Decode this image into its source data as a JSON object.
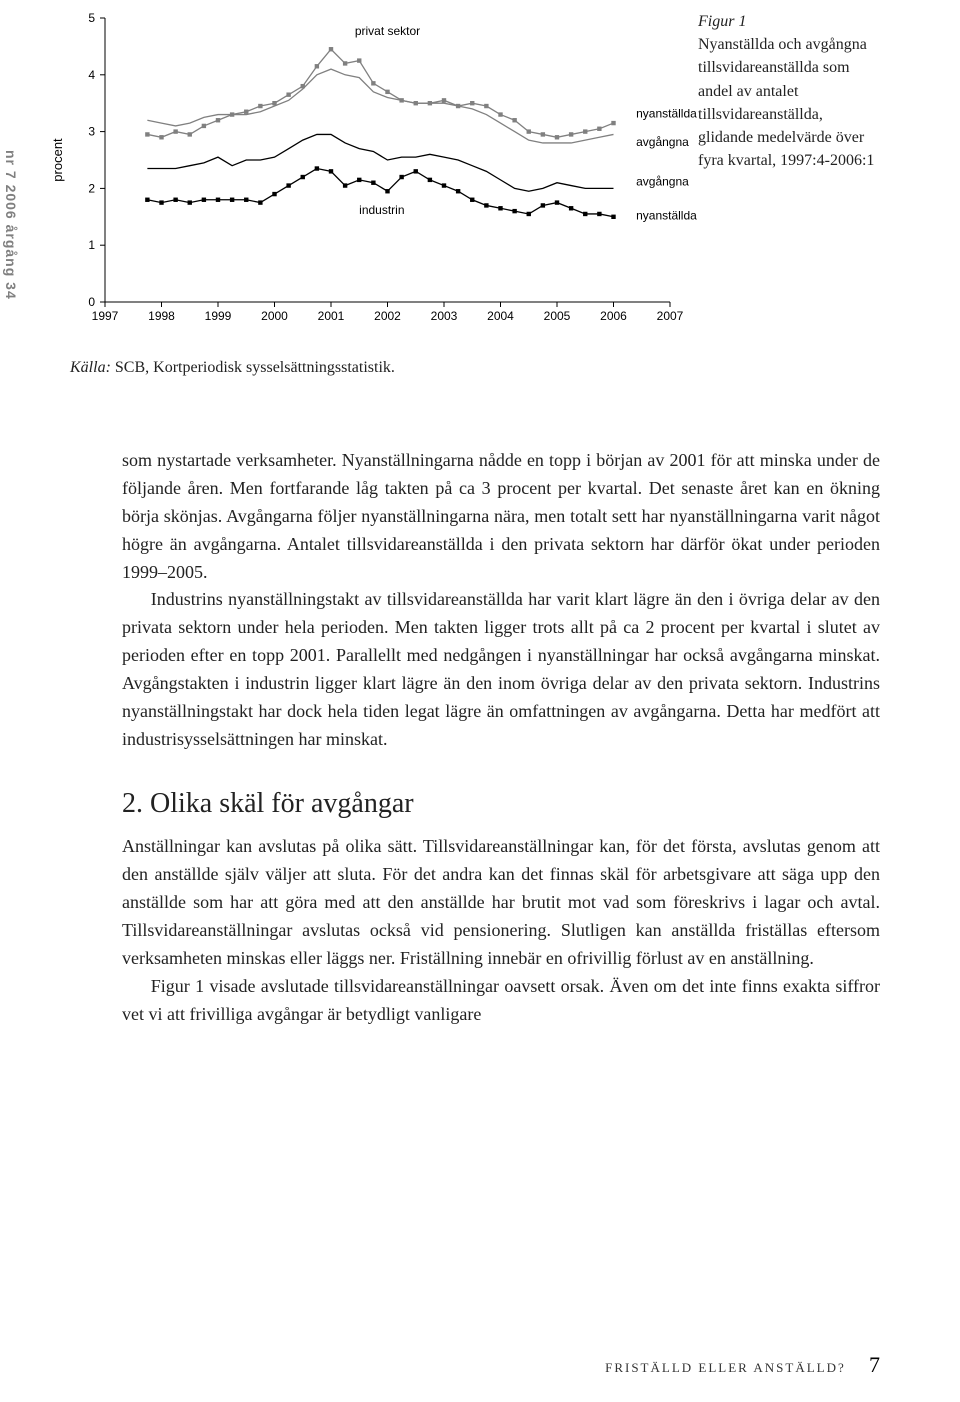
{
  "margin_label": "nr 7 2006 årgång 34",
  "figure": {
    "label": "Figur 1",
    "caption": "Nyanställda och avgångna tillsvidareanställda som andel av antalet tillsvidareanställda, glidande medelvärde över fyra kvartal, 1997:4-2006:1",
    "type": "line",
    "ylabel": "procent",
    "ylim": [
      0,
      5
    ],
    "yticks": [
      0,
      1,
      2,
      3,
      4,
      5
    ],
    "xlim": [
      1997,
      2007
    ],
    "xticks": [
      1997,
      1998,
      1999,
      2000,
      2001,
      2002,
      2003,
      2004,
      2005,
      2006,
      2007
    ],
    "axis_color": "#000000",
    "tick_fontsize": 12,
    "ylabel_fontsize": 13,
    "annotation_fontsize": 12,
    "annotations": {
      "privat_sektor": "privat sektor",
      "industrin": "industrin",
      "nyanstallda": "nyanställda",
      "avgangna": "avgångna"
    },
    "series": [
      {
        "name": "privat_nyanstallda",
        "color": "#808080",
        "marker": "square",
        "values": [
          2.95,
          2.9,
          3.0,
          2.95,
          3.1,
          3.2,
          3.3,
          3.35,
          3.45,
          3.5,
          3.65,
          3.8,
          4.15,
          4.45,
          4.2,
          4.25,
          3.85,
          3.7,
          3.55,
          3.5,
          3.5,
          3.55,
          3.45,
          3.5,
          3.45,
          3.3,
          3.2,
          3.0,
          2.95,
          2.9,
          2.95,
          3.0,
          3.05,
          3.15
        ],
        "start": 1997.75,
        "step": 0.25
      },
      {
        "name": "privat_avgangna",
        "color": "#808080",
        "marker": "none",
        "values": [
          3.2,
          3.15,
          3.1,
          3.15,
          3.25,
          3.3,
          3.3,
          3.3,
          3.35,
          3.45,
          3.55,
          3.75,
          4.0,
          4.1,
          4.0,
          3.95,
          3.7,
          3.6,
          3.55,
          3.5,
          3.5,
          3.5,
          3.45,
          3.4,
          3.3,
          3.15,
          3.0,
          2.85,
          2.8,
          2.8,
          2.8,
          2.85,
          2.9,
          2.95
        ],
        "start": 1997.75,
        "step": 0.25
      },
      {
        "name": "industri_avgangna",
        "color": "#000000",
        "marker": "none",
        "values": [
          2.35,
          2.35,
          2.35,
          2.4,
          2.45,
          2.55,
          2.4,
          2.5,
          2.5,
          2.55,
          2.7,
          2.85,
          2.95,
          2.95,
          2.8,
          2.7,
          2.65,
          2.5,
          2.55,
          2.55,
          2.6,
          2.55,
          2.5,
          2.4,
          2.3,
          2.15,
          2.0,
          1.95,
          2.0,
          2.1,
          2.05,
          2.0,
          2.0,
          2.0
        ],
        "start": 1997.75,
        "step": 0.25
      },
      {
        "name": "industri_nyanstallda",
        "color": "#000000",
        "marker": "square",
        "values": [
          1.8,
          1.75,
          1.8,
          1.75,
          1.8,
          1.8,
          1.8,
          1.8,
          1.75,
          1.9,
          2.05,
          2.2,
          2.35,
          2.3,
          2.05,
          2.15,
          2.1,
          1.95,
          2.2,
          2.3,
          2.15,
          2.05,
          1.95,
          1.8,
          1.7,
          1.65,
          1.6,
          1.55,
          1.7,
          1.75,
          1.65,
          1.55,
          1.55,
          1.5
        ],
        "start": 1997.75,
        "step": 0.25
      }
    ]
  },
  "source": {
    "label": "Källa:",
    "text": "SCB, Kortperiodisk sysselsättningsstatistik."
  },
  "body": {
    "p1": "som nystartade verksamheter. Nyanställningarna nådde en topp i början av 2001 för att minska under de följande åren. Men fortfarande låg takten på ca 3 procent per kvartal. Det senaste året kan en ökning börja skönjas. Avgångarna följer nyanställningarna nära, men totalt sett har nyanställningarna varit något högre än avgångarna. Antalet tillsvidareanställda i den privata sektorn har därför ökat under perioden 1999–2005.",
    "p2": "Industrins nyanställningstakt av tillsvidareanställda har varit klart lägre än den i övriga delar av den privata sektorn under hela perioden. Men takten ligger trots allt på ca 2 procent per kvartal i slutet av perioden efter en topp 2001. Parallellt med nedgången i nyanställningar har också avgångarna minskat. Avgångstakten i industrin ligger klart lägre än den inom övriga delar av den privata sektorn. Industrins nyanställningstakt har dock hela tiden legat lägre än omfattningen av avgångarna. Detta har medfört att industrisysselsättningen har minskat.",
    "h2": "2. Olika skäl för avgångar",
    "p3": "Anställningar kan avslutas på olika sätt. Tillsvidareanställningar kan, för det första, avslutas genom att den anställde själv väljer att sluta. För det andra kan det finnas skäl för arbetsgivare att säga upp den anställde som har att göra med att den anställde har brutit mot vad som föreskrivs i lagar och avtal. Tillsvidareanställningar avslutas också vid pensionering. Slutligen kan anställda friställas eftersom verksamheten minskas eller läggs ner. Friställning innebär en ofrivillig förlust av en anställning.",
    "p4": "Figur 1 visade avslutade tillsvidareanställningar oavsett orsak. Även om det inte finns exakta siffror vet vi att frivilliga avgångar är betydligt vanligare"
  },
  "footer": {
    "text": "FRISTÄLLD ELLER ANSTÄLLD?",
    "page": "7"
  }
}
